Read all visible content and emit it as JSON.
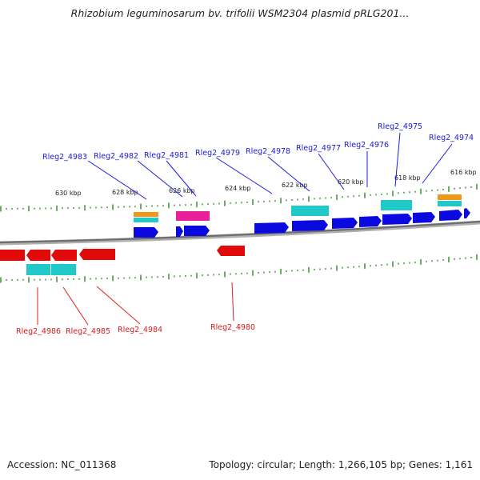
{
  "title": "Rhizobium leguminosarum bv. trifolii WSM2304 plasmid pRLG201...",
  "footer": {
    "accession": "Accession: NC_011368",
    "summary": "Topology: circular; Length: 1,266,105 bp; Genes: 1,161"
  },
  "colors": {
    "forward_gene": "#0a0ae0",
    "reverse_gene": "#e00a0a",
    "cyan_feature": "#20c8c8",
    "orange_feature": "#ee9a18",
    "magenta_feature": "#e8209a",
    "tick": "#2a8a1e",
    "backbone": "#7a7a7a"
  },
  "scale_labels": [
    "630 kbp",
    "628 kbp",
    "626 kbp",
    "624 kbp",
    "622 kbp",
    "620 kbp",
    "618 kbp",
    "616 kbp"
  ],
  "forward_gene_labels": [
    "Rleg2_4983",
    "Rleg2_4982",
    "Rleg2_4981",
    "Rleg2_4979",
    "Rleg2_4978",
    "Rleg2_4977",
    "Rleg2_4976",
    "Rleg2_4975",
    "Rleg2_4974"
  ],
  "reverse_gene_labels": [
    "Rleg2_4986",
    "Rleg2_4985",
    "Rleg2_4984",
    "Rleg2_4980"
  ]
}
